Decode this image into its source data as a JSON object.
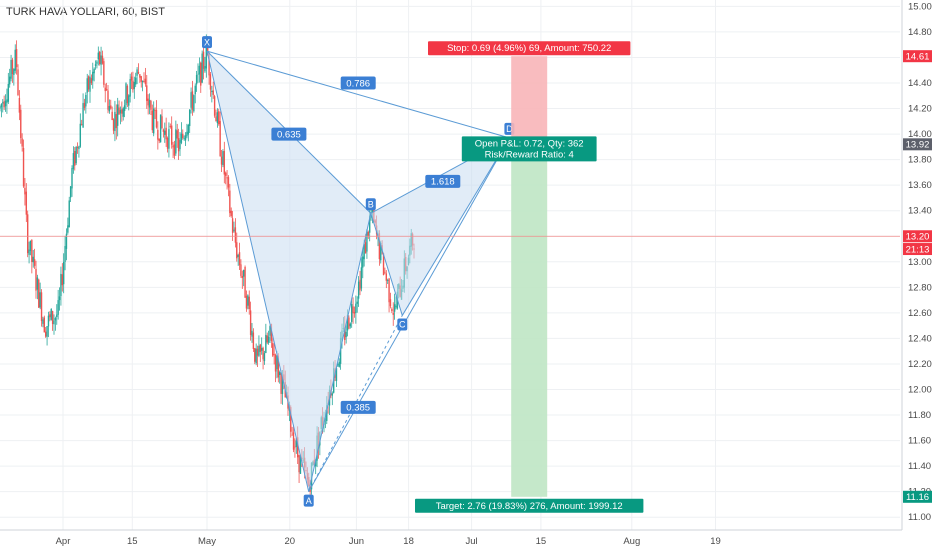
{
  "header": {
    "title": "TURK HAVA YOLLARI, 60, BIST"
  },
  "colors": {
    "up": "#26a69a",
    "down": "#ef5350",
    "pattern_fill": "#c9dcf1",
    "pattern_line": "#5b9bd5",
    "label_bg": "#3b7fd4",
    "stop_red": "#f23645",
    "target_green": "#089981",
    "stop_zone": "#f8b5b8",
    "target_zone": "#bfe5c4",
    "current_line": "#f28b8b"
  },
  "chart_data": {
    "type": "candlestick",
    "title": "TURK HAVA YOLLARI, 60, BIST",
    "ylim": [
      10.9,
      15.05
    ],
    "y_ticks": [
      "11.00",
      "11.20",
      "11.40",
      "11.60",
      "11.80",
      "12.00",
      "12.20",
      "12.40",
      "12.60",
      "12.80",
      "13.00",
      "13.20",
      "13.40",
      "13.60",
      "13.80",
      "14.00",
      "14.20",
      "14.40",
      "14.60",
      "14.80",
      "15.00"
    ],
    "x_ticks": [
      {
        "label": "Apr",
        "pos": 0.07
      },
      {
        "label": "15",
        "pos": 0.147
      },
      {
        "label": "May",
        "pos": 0.23
      },
      {
        "label": "20",
        "pos": 0.322
      },
      {
        "label": "Jun",
        "pos": 0.396
      },
      {
        "label": "18",
        "pos": 0.454
      },
      {
        "label": "Jul",
        "pos": 0.524
      },
      {
        "label": "15",
        "pos": 0.601
      },
      {
        "label": "Aug",
        "pos": 0.702
      },
      {
        "label": "19",
        "pos": 0.795
      }
    ],
    "candle_span": [
      0.0,
      0.46
    ],
    "anchors": [
      [
        0.0,
        14.2
      ],
      [
        0.018,
        14.6
      ],
      [
        0.03,
        13.2
      ],
      [
        0.05,
        12.5
      ],
      [
        0.065,
        12.6
      ],
      [
        0.08,
        13.7
      ],
      [
        0.095,
        14.3
      ],
      [
        0.11,
        14.6
      ],
      [
        0.125,
        14.1
      ],
      [
        0.14,
        14.3
      ],
      [
        0.155,
        14.5
      ],
      [
        0.17,
        14.1
      ],
      [
        0.185,
        14.0
      ],
      [
        0.2,
        13.9
      ],
      [
        0.215,
        14.3
      ],
      [
        0.23,
        14.65
      ],
      [
        0.245,
        13.9
      ],
      [
        0.26,
        13.2
      ],
      [
        0.275,
        12.7
      ],
      [
        0.285,
        12.2
      ],
      [
        0.3,
        12.4
      ],
      [
        0.315,
        12.0
      ],
      [
        0.33,
        11.5
      ],
      [
        0.343,
        11.25
      ],
      [
        0.356,
        11.7
      ],
      [
        0.37,
        12.1
      ],
      [
        0.385,
        12.5
      ],
      [
        0.398,
        12.8
      ],
      [
        0.412,
        13.38
      ],
      [
        0.425,
        13.0
      ],
      [
        0.438,
        12.6
      ],
      [
        0.448,
        12.9
      ],
      [
        0.46,
        13.2
      ]
    ],
    "pattern": {
      "points": [
        {
          "name": "X",
          "t": 0.23,
          "v": 14.65
        },
        {
          "name": "A",
          "t": 0.343,
          "v": 11.2
        },
        {
          "name": "B",
          "t": 0.412,
          "v": 13.38
        },
        {
          "name": "C",
          "t": 0.447,
          "v": 12.58
        },
        {
          "name": "D",
          "t": 0.566,
          "v": 13.97
        }
      ],
      "ratios": [
        {
          "label": "0.786",
          "t": 0.398,
          "v": 14.4
        },
        {
          "label": "0.635",
          "t": 0.321,
          "v": 14.0
        },
        {
          "label": "1.618",
          "t": 0.492,
          "v": 13.63
        },
        {
          "label": "0.385",
          "t": 0.398,
          "v": 11.86
        }
      ]
    },
    "position": {
      "t_start": 0.568,
      "t_end": 0.608,
      "entry": 13.92,
      "stop": 14.61,
      "target": 11.16,
      "stop_label": "Stop: 0.69 (4.96%) 69, Amount: 750.22",
      "pnl_label": "Open P&L: 0.72, Qty: 362",
      "rr_label": "Risk/Reward Ratio: 4",
      "target_label": "Target: 2.76 (19.83%) 276, Amount: 1999.12"
    },
    "axis_tags": [
      {
        "label": "14.61",
        "v": 14.61,
        "color": "#f23645"
      },
      {
        "label": "13.92",
        "v": 13.92,
        "color": "#5d606b"
      },
      {
        "label": "13.20",
        "v": 13.2,
        "color": "#f23645"
      },
      {
        "label": "21:13",
        "v": 13.1,
        "color": "#f23645"
      },
      {
        "label": "11.16",
        "v": 11.16,
        "color": "#089981"
      }
    ],
    "current_price": 13.2
  }
}
